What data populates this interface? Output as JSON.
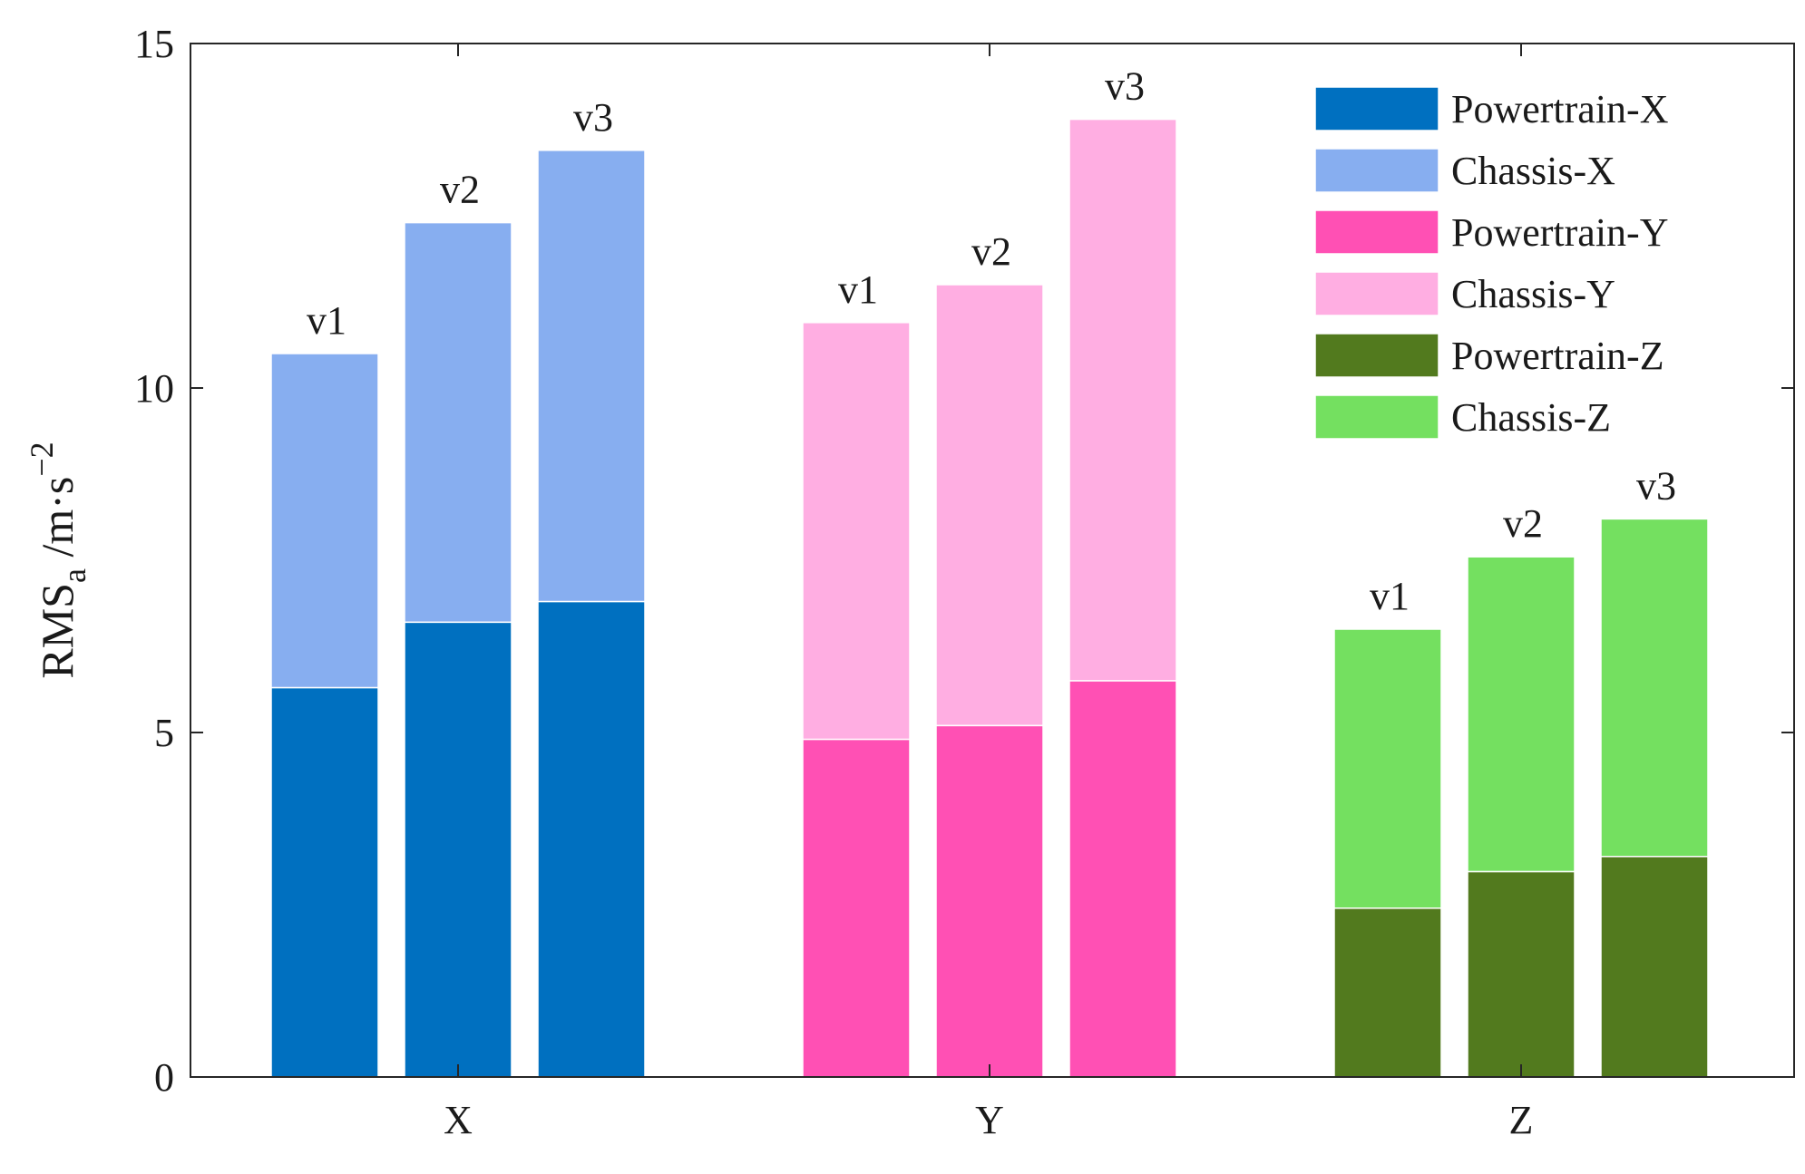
{
  "chart_data": {
    "type": "bar",
    "stacked": true,
    "grouped": true,
    "title": "",
    "xlabel": "",
    "ylabel": {
      "main": "RMS",
      "subscript": "a",
      "unit": "/m·s",
      "exponent": "−2"
    },
    "ylim": [
      0,
      15
    ],
    "yticks": [
      "0",
      "5",
      "10",
      "15"
    ],
    "grid": false,
    "legend_position": "top-right",
    "groups": [
      {
        "name": "X",
        "bars": [
          {
            "label": "v1",
            "powertrain": 5.65,
            "total": 10.5
          },
          {
            "label": "v2",
            "powertrain": 6.6,
            "total": 12.4
          },
          {
            "label": "v3",
            "powertrain": 6.9,
            "total": 13.45
          }
        ]
      },
      {
        "name": "Y",
        "bars": [
          {
            "label": "v1",
            "powertrain": 4.9,
            "total": 10.95
          },
          {
            "label": "v2",
            "powertrain": 5.1,
            "total": 11.5
          },
          {
            "label": "v3",
            "powertrain": 5.75,
            "total": 13.9
          }
        ]
      },
      {
        "name": "Z",
        "bars": [
          {
            "label": "v1",
            "powertrain": 2.45,
            "total": 6.5
          },
          {
            "label": "v2",
            "powertrain": 2.98,
            "total": 7.55
          },
          {
            "label": "v3",
            "powertrain": 3.2,
            "total": 8.1
          }
        ]
      }
    ],
    "colors": {
      "X": {
        "powertrain": "#0070c0",
        "chassis": "#87aef0"
      },
      "Y": {
        "powertrain": "#ff50b4",
        "chassis": "#ffaee2"
      },
      "Z": {
        "powertrain": "#527a1e",
        "chassis": "#74e060"
      }
    },
    "legend": [
      {
        "label": "Powertrain-X",
        "color": "#0070c0"
      },
      {
        "label": "Chassis-X",
        "color": "#87aef0"
      },
      {
        "label": "Powertrain-Y",
        "color": "#ff50b4"
      },
      {
        "label": "Chassis-Y",
        "color": "#ffaee2"
      },
      {
        "label": "Powertrain-Z",
        "color": "#527a1e"
      },
      {
        "label": "Chassis-Z",
        "color": "#74e060"
      }
    ]
  }
}
